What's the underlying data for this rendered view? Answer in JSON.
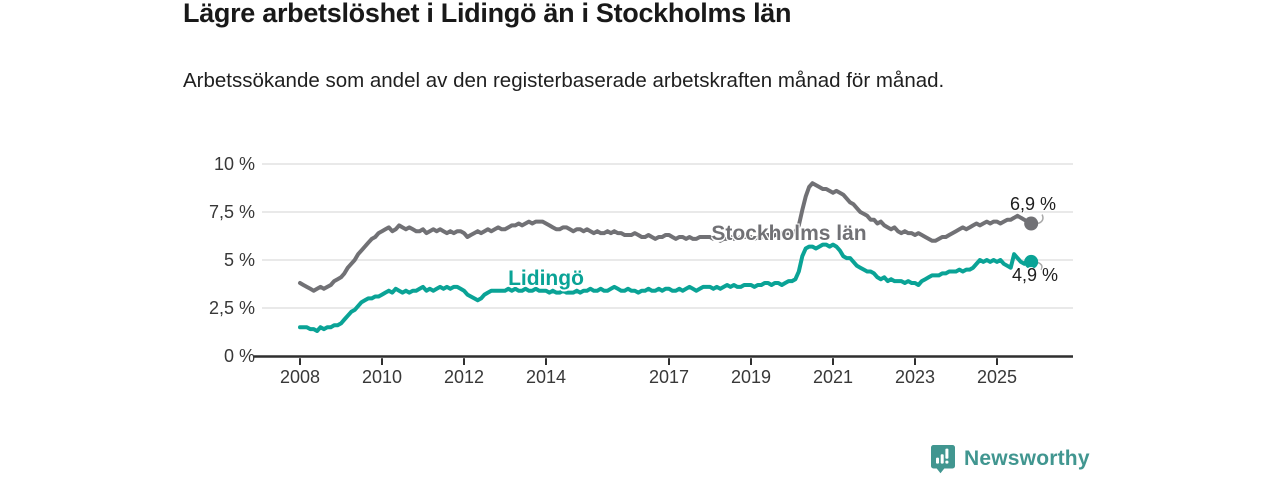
{
  "header": {
    "title": "Lägre arbetslöshet i Lidingö än i Stockholms län",
    "subtitle": "Arbetssökande som andel av den registerbaserade arbetskraften månad för månad."
  },
  "chart_data": {
    "type": "line",
    "frequency": "monthly",
    "x_start": "2008-01",
    "x_end": "2025-11",
    "ylim": [
      0,
      10
    ],
    "grid": "horizontal",
    "legend_position": "inline-labels",
    "y_ticks": [
      {
        "value": 0,
        "label": "0 %"
      },
      {
        "value": 2.5,
        "label": "2,5 %"
      },
      {
        "value": 5,
        "label": "5 %"
      },
      {
        "value": 7.5,
        "label": "7,5 %"
      },
      {
        "value": 10,
        "label": "10 %"
      }
    ],
    "x_ticks": [
      {
        "value": 2008,
        "label": "2008"
      },
      {
        "value": 2010,
        "label": "2010"
      },
      {
        "value": 2012,
        "label": "2012"
      },
      {
        "value": 2014,
        "label": "2014"
      },
      {
        "value": 2017,
        "label": "2017"
      },
      {
        "value": 2019,
        "label": "2019"
      },
      {
        "value": 2021,
        "label": "2021"
      },
      {
        "value": 2023,
        "label": "2023"
      },
      {
        "value": 2025,
        "label": "2025"
      }
    ],
    "series": [
      {
        "name": "Stockholms län",
        "color": "#717175",
        "end_label": "6,9 %",
        "end_value": 6.9,
        "values": [
          3.8,
          3.7,
          3.6,
          3.5,
          3.4,
          3.5,
          3.6,
          3.5,
          3.6,
          3.7,
          3.9,
          4.0,
          4.1,
          4.3,
          4.6,
          4.8,
          5.0,
          5.3,
          5.5,
          5.7,
          5.9,
          6.1,
          6.2,
          6.4,
          6.5,
          6.6,
          6.7,
          6.5,
          6.6,
          6.8,
          6.7,
          6.6,
          6.7,
          6.6,
          6.5,
          6.5,
          6.6,
          6.4,
          6.5,
          6.6,
          6.5,
          6.6,
          6.5,
          6.4,
          6.5,
          6.4,
          6.5,
          6.5,
          6.4,
          6.2,
          6.3,
          6.4,
          6.5,
          6.4,
          6.5,
          6.6,
          6.5,
          6.6,
          6.7,
          6.6,
          6.6,
          6.7,
          6.8,
          6.8,
          6.9,
          6.8,
          6.9,
          7.0,
          6.9,
          7.0,
          7.0,
          7.0,
          6.9,
          6.8,
          6.7,
          6.6,
          6.6,
          6.7,
          6.7,
          6.6,
          6.5,
          6.6,
          6.6,
          6.5,
          6.6,
          6.5,
          6.4,
          6.5,
          6.4,
          6.4,
          6.5,
          6.4,
          6.5,
          6.4,
          6.4,
          6.3,
          6.3,
          6.3,
          6.4,
          6.3,
          6.2,
          6.2,
          6.3,
          6.2,
          6.1,
          6.2,
          6.2,
          6.3,
          6.3,
          6.2,
          6.1,
          6.2,
          6.2,
          6.1,
          6.2,
          6.1,
          6.1,
          6.2,
          6.2,
          6.2,
          6.2,
          6.1,
          6.1,
          6.0,
          6.1,
          6.1,
          6.2,
          6.1,
          6.1,
          6.2,
          6.2,
          6.2,
          6.2,
          6.1,
          6.2,
          6.2,
          6.3,
          6.3,
          6.2,
          6.3,
          6.3,
          6.4,
          6.4,
          6.4,
          6.4,
          6.5,
          6.8,
          7.6,
          8.3,
          8.8,
          9.0,
          8.9,
          8.8,
          8.7,
          8.7,
          8.6,
          8.5,
          8.6,
          8.5,
          8.4,
          8.2,
          8.0,
          7.9,
          7.7,
          7.5,
          7.4,
          7.3,
          7.1,
          7.1,
          6.9,
          7.0,
          6.8,
          6.7,
          6.6,
          6.7,
          6.5,
          6.4,
          6.5,
          6.4,
          6.4,
          6.3,
          6.4,
          6.3,
          6.2,
          6.1,
          6.0,
          6.0,
          6.1,
          6.2,
          6.2,
          6.3,
          6.4,
          6.5,
          6.6,
          6.7,
          6.6,
          6.7,
          6.8,
          6.9,
          6.8,
          6.9,
          7.0,
          6.9,
          7.0,
          7.0,
          6.9,
          7.0,
          7.1,
          7.1,
          7.2,
          7.3,
          7.2,
          7.1,
          7.0,
          6.9
        ]
      },
      {
        "name": "Lidingö",
        "color": "#0aa396",
        "end_label": "4,9 %",
        "end_value": 4.9,
        "values": [
          1.5,
          1.5,
          1.5,
          1.4,
          1.4,
          1.3,
          1.5,
          1.4,
          1.5,
          1.5,
          1.6,
          1.6,
          1.7,
          1.9,
          2.1,
          2.3,
          2.4,
          2.6,
          2.8,
          2.9,
          3.0,
          3.0,
          3.1,
          3.1,
          3.2,
          3.3,
          3.4,
          3.3,
          3.5,
          3.4,
          3.3,
          3.4,
          3.3,
          3.4,
          3.4,
          3.5,
          3.6,
          3.4,
          3.5,
          3.4,
          3.5,
          3.6,
          3.5,
          3.6,
          3.5,
          3.6,
          3.6,
          3.5,
          3.4,
          3.2,
          3.1,
          3.0,
          2.9,
          3.0,
          3.2,
          3.3,
          3.4,
          3.4,
          3.4,
          3.4,
          3.4,
          3.5,
          3.4,
          3.5,
          3.4,
          3.4,
          3.5,
          3.4,
          3.4,
          3.5,
          3.4,
          3.4,
          3.4,
          3.3,
          3.4,
          3.3,
          3.3,
          3.4,
          3.3,
          3.3,
          3.3,
          3.4,
          3.3,
          3.4,
          3.4,
          3.5,
          3.4,
          3.4,
          3.5,
          3.4,
          3.4,
          3.5,
          3.6,
          3.5,
          3.4,
          3.4,
          3.5,
          3.4,
          3.4,
          3.3,
          3.4,
          3.4,
          3.5,
          3.4,
          3.4,
          3.5,
          3.4,
          3.5,
          3.5,
          3.4,
          3.4,
          3.5,
          3.4,
          3.5,
          3.6,
          3.5,
          3.4,
          3.5,
          3.6,
          3.6,
          3.6,
          3.5,
          3.6,
          3.5,
          3.6,
          3.7,
          3.6,
          3.7,
          3.6,
          3.6,
          3.7,
          3.7,
          3.7,
          3.6,
          3.7,
          3.7,
          3.8,
          3.8,
          3.7,
          3.8,
          3.8,
          3.7,
          3.8,
          3.9,
          3.9,
          4.0,
          4.4,
          5.2,
          5.6,
          5.7,
          5.7,
          5.6,
          5.7,
          5.8,
          5.8,
          5.7,
          5.8,
          5.7,
          5.5,
          5.2,
          5.1,
          5.1,
          4.9,
          4.7,
          4.6,
          4.5,
          4.4,
          4.4,
          4.3,
          4.1,
          4.0,
          4.1,
          3.9,
          4.0,
          3.9,
          3.9,
          3.9,
          3.8,
          3.9,
          3.8,
          3.8,
          3.7,
          3.9,
          4.0,
          4.1,
          4.2,
          4.2,
          4.2,
          4.3,
          4.3,
          4.4,
          4.4,
          4.4,
          4.5,
          4.4,
          4.5,
          4.5,
          4.6,
          4.8,
          5.0,
          4.9,
          5.0,
          4.9,
          5.0,
          4.9,
          5.0,
          4.8,
          4.7,
          4.6,
          5.3,
          5.1,
          4.9,
          4.8,
          5.0,
          4.9
        ]
      }
    ]
  },
  "footer": {
    "brand": "Newsworthy",
    "brand_color": "#419690"
  }
}
